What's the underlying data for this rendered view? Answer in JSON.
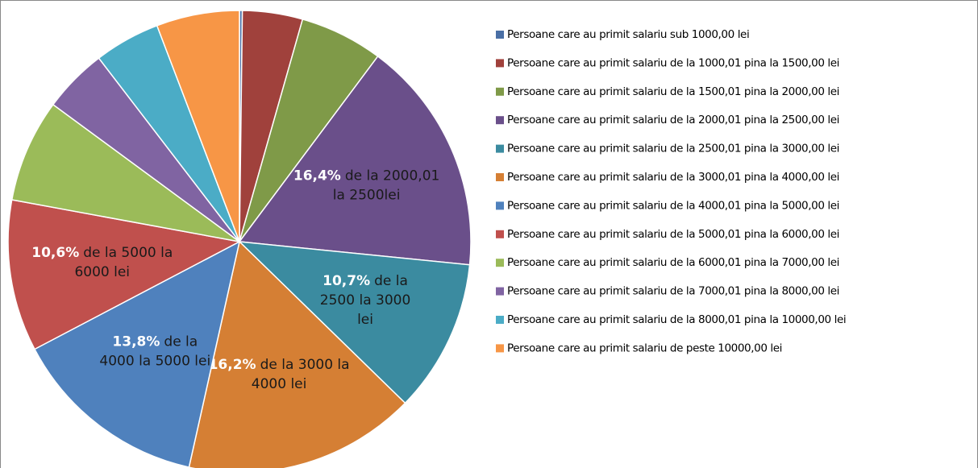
{
  "chart_data": {
    "type": "pie",
    "categories": [
      "Persoane care au primit salariu sub 1000,00 lei",
      "Persoane care au primit salariu de la 1000,01 pina la 1500,00 lei",
      "Persoane care au primit salariu de la 1500,01 pina la 2000,00 lei",
      "Persoane care au primit salariu de la 2000,01 pina la 2500,00 lei",
      "Persoane care au primit salariu de la 2500,01 pina la 3000,00 lei",
      "Persoane care au primit salariu de la 3000,01 pina la 4000,00  lei",
      "Persoane care au primit salariu de la 4000,01 pina la 5000,00 lei",
      "Persoane care au primit salariu de la 5000,01 pina la 6000,00 lei",
      "Persoane care au primit salariu de la 6000,01 pina la 7000,00 lei",
      "Persoane care au primit salariu de la 7000,01 pina la 8000,00 lei",
      "Persoane care au primit salariu de la 8000,01 pina la 10000,00 lei",
      "Persoane care au primit salariu de peste 10000,00 lei"
    ],
    "values": [
      0.2,
      4.2,
      5.8,
      16.4,
      10.7,
      16.2,
      13.8,
      10.6,
      7.2,
      4.5,
      4.6,
      5.8
    ],
    "value_labels": [
      null,
      null,
      null,
      "16,4%",
      "10,7%",
      "16,2%",
      "13,8%",
      "10,6%",
      null,
      null,
      null,
      null
    ],
    "data_labels": [
      null,
      null,
      null,
      [
        "de la 2000,01",
        "la 2500lei"
      ],
      [
        "de la",
        "2500 la 3000",
        "lei"
      ],
      [
        "de la 3000 la",
        "4000 lei"
      ],
      [
        "de la",
        "4000 la 5000 lei"
      ],
      [
        "de la 5000 la",
        "6000 lei"
      ],
      null,
      null,
      null,
      null
    ],
    "colors": [
      "#4a6fa5",
      "#a0413c",
      "#7f9a48",
      "#6a4f8a",
      "#3b8ba0",
      "#d57f34",
      "#4f81bd",
      "#c0504d",
      "#9bbb59",
      "#8064a2",
      "#4bacc6",
      "#f79646"
    ],
    "legend": "right"
  }
}
